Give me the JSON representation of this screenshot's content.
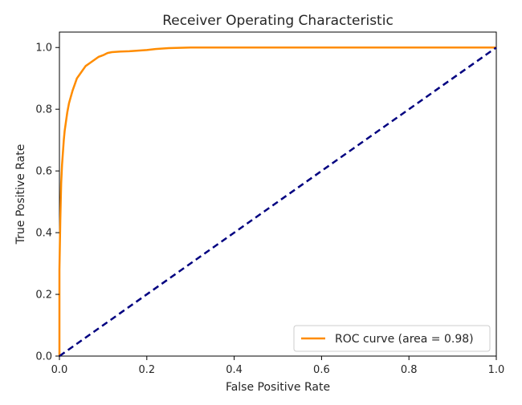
{
  "chart_data": {
    "type": "line",
    "title": "Receiver Operating Characteristic",
    "xlabel": "False Positive Rate",
    "ylabel": "True Positive Rate",
    "xlim": [
      0.0,
      1.0
    ],
    "ylim": [
      0.0,
      1.05
    ],
    "x_ticks": [
      "0.0",
      "0.2",
      "0.4",
      "0.6",
      "0.8",
      "1.0"
    ],
    "y_ticks": [
      "0.0",
      "0.2",
      "0.4",
      "0.6",
      "0.8",
      "1.0"
    ],
    "grid": false,
    "legend_position": "lower-right",
    "series": [
      {
        "name": "ROC curve (area = 0.98)",
        "color": "#ff8c00",
        "style": "solid",
        "x": [
          0.0,
          0.0,
          0.002,
          0.003,
          0.004,
          0.006,
          0.008,
          0.01,
          0.012,
          0.015,
          0.018,
          0.022,
          0.026,
          0.03,
          0.035,
          0.04,
          0.045,
          0.05,
          0.06,
          0.07,
          0.08,
          0.09,
          0.1,
          0.11,
          0.12,
          0.14,
          0.16,
          0.18,
          0.2,
          0.22,
          0.25,
          0.3,
          0.4,
          0.6,
          0.8,
          1.0
        ],
        "y": [
          0.0,
          0.28,
          0.44,
          0.5,
          0.56,
          0.62,
          0.66,
          0.7,
          0.73,
          0.76,
          0.79,
          0.82,
          0.84,
          0.86,
          0.88,
          0.9,
          0.91,
          0.92,
          0.94,
          0.95,
          0.96,
          0.97,
          0.975,
          0.982,
          0.985,
          0.987,
          0.988,
          0.99,
          0.992,
          0.995,
          0.998,
          1.0,
          1.0,
          1.0,
          1.0,
          1.0
        ]
      },
      {
        "color": "#000080",
        "style": "dashed",
        "x": [
          0.0,
          1.0
        ],
        "y": [
          0.0,
          1.0
        ]
      }
    ]
  }
}
